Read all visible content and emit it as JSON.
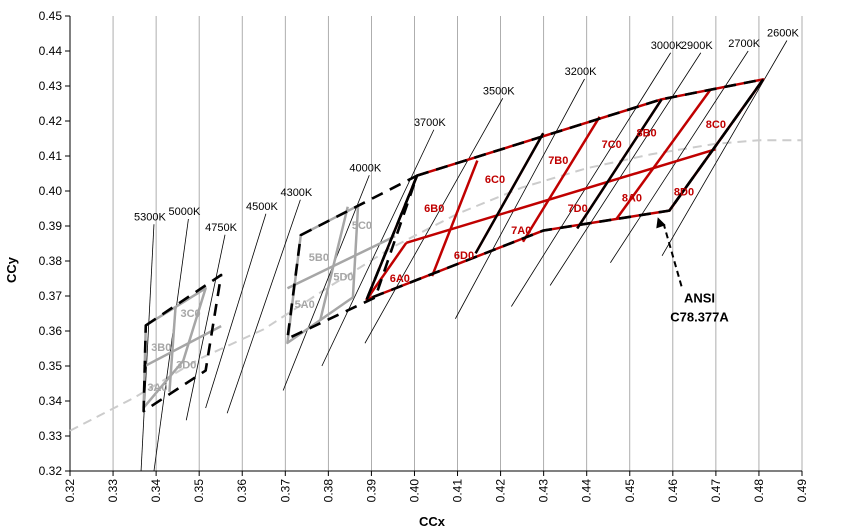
{
  "chart_data": {
    "type": "line",
    "title": "",
    "xlabel": "CCx",
    "ylabel": "CCy",
    "xlim": [
      0.32,
      0.49
    ],
    "ylim": [
      0.32,
      0.45
    ],
    "x_ticks": [
      "0.32",
      "0.33",
      "0.34",
      "0.35",
      "0.36",
      "0.37",
      "0.38",
      "0.39",
      "0.40",
      "0.41",
      "0.42",
      "0.43",
      "0.44",
      "0.45",
      "0.46",
      "0.47",
      "0.48",
      "0.49"
    ],
    "y_ticks": [
      "0.32",
      "0.33",
      "0.34",
      "0.35",
      "0.36",
      "0.37",
      "0.38",
      "0.39",
      "0.40",
      "0.41",
      "0.42",
      "0.43",
      "0.44",
      "0.45"
    ],
    "grid": "vertical",
    "colors": {
      "red": "#c00000",
      "gray": "#a6a6a6",
      "black": "#000000",
      "locus": "#cccccc"
    },
    "planckian_locus": [
      [
        0.32,
        0.3315
      ],
      [
        0.335,
        0.341
      ],
      [
        0.35,
        0.352
      ],
      [
        0.365,
        0.3605
      ],
      [
        0.38,
        0.3725
      ],
      [
        0.395,
        0.384
      ],
      [
        0.41,
        0.3935
      ],
      [
        0.425,
        0.401
      ],
      [
        0.44,
        0.4065
      ],
      [
        0.455,
        0.4105
      ],
      [
        0.47,
        0.4135
      ],
      [
        0.48,
        0.4145
      ],
      [
        0.49,
        0.4145
      ]
    ],
    "cct_lines": [
      {
        "label": "5300K",
        "from": [
          0.3365,
          0.32
        ],
        "to": [
          0.3395,
          0.3905
        ]
      },
      {
        "label": "5000K",
        "from": [
          0.3395,
          0.32
        ],
        "to": [
          0.3475,
          0.392
        ]
      },
      {
        "label": "4750K",
        "from": [
          0.347,
          0.3345
        ],
        "to": [
          0.356,
          0.3875
        ]
      },
      {
        "label": "4500K",
        "from": [
          0.3515,
          0.338
        ],
        "to": [
          0.3655,
          0.3935
        ]
      },
      {
        "label": "4300K",
        "from": [
          0.3565,
          0.3365
        ],
        "to": [
          0.3735,
          0.3975
        ]
      },
      {
        "label": "4000K",
        "from": [
          0.3695,
          0.343
        ],
        "to": [
          0.3895,
          0.4045
        ]
      },
      {
        "label": "3700K",
        "from": [
          0.3785,
          0.35
        ],
        "to": [
          0.4045,
          0.4175
        ]
      },
      {
        "label": "3500K",
        "from": [
          0.3885,
          0.3565
        ],
        "to": [
          0.4205,
          0.4265
        ]
      },
      {
        "label": "3200K",
        "from": [
          0.4095,
          0.3635
        ],
        "to": [
          0.4395,
          0.432
        ]
      },
      {
        "label": "3000K",
        "from": [
          0.4225,
          0.367
        ],
        "to": [
          0.4595,
          0.4395
        ]
      },
      {
        "label": "2900K",
        "from": [
          0.4315,
          0.373
        ],
        "to": [
          0.4665,
          0.4395
        ]
      },
      {
        "label": "2700K",
        "from": [
          0.4455,
          0.3795
        ],
        "to": [
          0.4775,
          0.44
        ]
      },
      {
        "label": "2600K",
        "from": [
          0.4575,
          0.3815
        ],
        "to": [
          0.4865,
          0.443
        ]
      }
    ],
    "quadrangles": [
      {
        "group": "gray",
        "style": "solid",
        "points": [
          [
            0.3376,
            0.3616
          ],
          [
            0.3515,
            0.3722
          ],
          [
            0.3463,
            0.3515
          ],
          [
            0.3371,
            0.3381
          ]
        ]
      },
      {
        "group": "black",
        "style": "dashed",
        "points": [
          [
            0.3376,
            0.3616
          ],
          [
            0.3551,
            0.376
          ],
          [
            0.3515,
            0.3487
          ],
          [
            0.3371,
            0.3371
          ]
        ]
      },
      {
        "group": "gray",
        "style": "solid",
        "points": [
          [
            0.3736,
            0.3874
          ],
          [
            0.3869,
            0.3958
          ],
          [
            0.3857,
            0.3696
          ],
          [
            0.3705,
            0.3566
          ]
        ]
      },
      {
        "group": "black",
        "style": "dashed",
        "points": [
          [
            0.3736,
            0.3874
          ],
          [
            0.4006,
            0.4044
          ],
          [
            0.3909,
            0.3696
          ],
          [
            0.3705,
            0.3578
          ]
        ]
      },
      {
        "group": "red",
        "style": "solid",
        "points": [
          [
            0.4006,
            0.4044
          ],
          [
            0.4574,
            0.4262
          ],
          [
            0.481,
            0.4319
          ],
          [
            0.4592,
            0.3944
          ],
          [
            0.4299,
            0.3887
          ],
          [
            0.3889,
            0.369
          ]
        ]
      },
      {
        "group": "black",
        "style": "dashed",
        "points": [
          [
            0.4006,
            0.4044
          ],
          [
            0.4574,
            0.4262
          ],
          [
            0.481,
            0.4319
          ],
          [
            0.4592,
            0.3944
          ],
          [
            0.4299,
            0.3887
          ],
          [
            0.3889,
            0.369
          ]
        ]
      }
    ],
    "grid_segments_red": [
      {
        "from": [
          0.3981,
          0.3852
        ],
        "to": [
          0.4699,
          0.4119
        ]
      },
      {
        "from": [
          0.3981,
          0.3852
        ],
        "to": [
          0.3889,
          0.369
        ]
      },
      {
        "from": [
          0.4146,
          0.4087
        ],
        "to": [
          0.4041,
          0.3757
        ]
      },
      {
        "from": [
          0.4299,
          0.4165
        ],
        "to": [
          0.4142,
          0.3822
        ]
      },
      {
        "from": [
          0.443,
          0.4212
        ],
        "to": [
          0.4252,
          0.3855
        ]
      },
      {
        "from": [
          0.4574,
          0.4262
        ],
        "to": [
          0.4378,
          0.3893
        ]
      },
      {
        "from": [
          0.4687,
          0.4289
        ],
        "to": [
          0.4469,
          0.392
        ]
      },
      {
        "from": [
          0.481,
          0.4319
        ],
        "to": [
          0.4592,
          0.3944
        ]
      }
    ],
    "grid_segments_black": [
      {
        "from": [
          0.4006,
          0.4044
        ],
        "to": [
          0.3889,
          0.369
        ]
      },
      {
        "from": [
          0.4299,
          0.4165
        ],
        "to": [
          0.4142,
          0.3822
        ]
      },
      {
        "from": [
          0.4574,
          0.4262
        ],
        "to": [
          0.4378,
          0.3893
        ]
      },
      {
        "from": [
          0.481,
          0.4319
        ],
        "to": [
          0.4592,
          0.3944
        ]
      }
    ],
    "grid_segments_gray": [
      {
        "from": [
          0.3371,
          0.3498
        ],
        "to": [
          0.3551,
          0.3614
        ]
      },
      {
        "from": [
          0.3445,
          0.3667
        ],
        "to": [
          0.3431,
          0.3426
        ]
      },
      {
        "from": [
          0.3705,
          0.3722
        ],
        "to": [
          0.3955,
          0.3871
        ]
      },
      {
        "from": [
          0.3845,
          0.3955
        ],
        "to": [
          0.3781,
          0.363
        ]
      }
    ],
    "bin_labels": [
      {
        "text": "3B0",
        "x": 0.3412,
        "y": 0.3554,
        "color": "gray"
      },
      {
        "text": "3C0",
        "x": 0.348,
        "y": 0.3651,
        "color": "gray"
      },
      {
        "text": "3D0",
        "x": 0.347,
        "y": 0.3505,
        "color": "gray"
      },
      {
        "text": "3A0",
        "x": 0.3403,
        "y": 0.344,
        "color": "gray"
      },
      {
        "text": "5B0",
        "x": 0.3778,
        "y": 0.3812,
        "color": "gray"
      },
      {
        "text": "5C0",
        "x": 0.3878,
        "y": 0.3903,
        "color": "gray"
      },
      {
        "text": "5D0",
        "x": 0.3835,
        "y": 0.3756,
        "color": "gray"
      },
      {
        "text": "5A0",
        "x": 0.3745,
        "y": 0.3677,
        "color": "gray"
      },
      {
        "text": "6B0",
        "x": 0.4046,
        "y": 0.3952,
        "color": "red"
      },
      {
        "text": "6C0",
        "x": 0.4187,
        "y": 0.4034,
        "color": "red"
      },
      {
        "text": "6D0",
        "x": 0.4115,
        "y": 0.3817,
        "color": "red"
      },
      {
        "text": "6A0",
        "x": 0.3966,
        "y": 0.3751,
        "color": "red"
      },
      {
        "text": "7B0",
        "x": 0.4334,
        "y": 0.4089,
        "color": "red"
      },
      {
        "text": "7C0",
        "x": 0.4458,
        "y": 0.4135,
        "color": "red"
      },
      {
        "text": "7D0",
        "x": 0.4379,
        "y": 0.3951,
        "color": "red"
      },
      {
        "text": "7A0",
        "x": 0.4248,
        "y": 0.3889,
        "color": "red"
      },
      {
        "text": "8B0",
        "x": 0.4539,
        "y": 0.4167,
        "color": "red"
      },
      {
        "text": "8C0",
        "x": 0.47,
        "y": 0.4192,
        "color": "red"
      },
      {
        "text": "8D0",
        "x": 0.4626,
        "y": 0.3998,
        "color": "red"
      },
      {
        "text": "8A0",
        "x": 0.4505,
        "y": 0.3982,
        "color": "red"
      }
    ],
    "annotation": {
      "lines": [
        "ANSI",
        "C78.377A"
      ],
      "label_at": [
        0.4662,
        0.3682
      ],
      "arrow_to": [
        0.4565,
        0.3925
      ]
    }
  }
}
